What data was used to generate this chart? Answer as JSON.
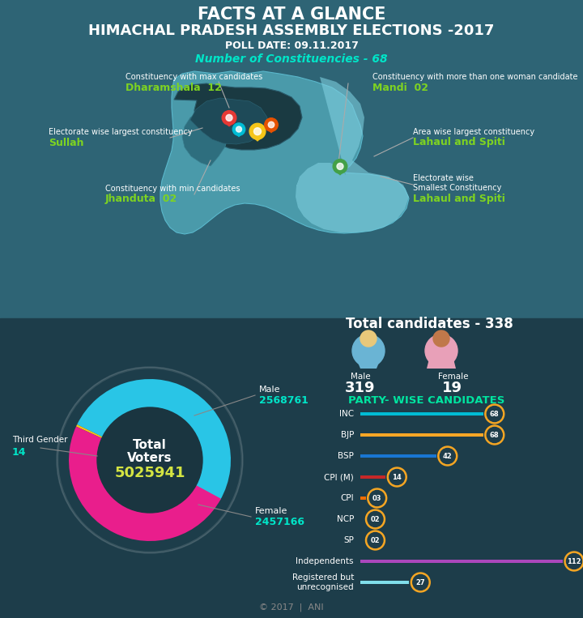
{
  "title_line1": "FACTS AT A GLANCE",
  "title_line2": "HIMACHAL PRADESH ASSEMBLY ELECTIONS -2017",
  "poll_date": "POLL DATE: 09.11.2017",
  "num_constituencies": "Number of Constituencies - 68",
  "total_candidates": "Total candidates - 338",
  "male_candidates": 319,
  "female_candidates": 19,
  "total_voters": "5025941",
  "male_voters": "2568761",
  "female_voters": "2457166",
  "third_gender": "14",
  "bg_top": "#2e6475",
  "bg_bottom": "#1d3d4a",
  "cyan_color": "#00e5c8",
  "green_ann": "#7ed321",
  "yellow_color": "#d4e442",
  "white_color": "#ffffff",
  "parties": [
    "INC",
    "BJP",
    "BSP",
    "CPI (M)",
    "CPI",
    "NCP",
    "SP",
    "Independents",
    "Registered but\nunrecognised"
  ],
  "party_values": [
    68,
    68,
    42,
    14,
    3,
    2,
    2,
    112,
    27
  ],
  "party_colors": [
    "#00bcd4",
    "#ffa726",
    "#1976d2",
    "#c62828",
    "#ef6c00",
    "#ef6c00",
    "#ef6c00",
    "#ab47bc",
    "#80deea"
  ],
  "max_bar_val": 112,
  "circle_bg": "#f5a623",
  "circle_inner": "#1e3d4a",
  "map_teal_light": "#4a9aaa",
  "map_teal_mid": "#2e6e7e",
  "map_dark": "#1a3a42",
  "map_blue_light": "#7ecae0",
  "donut_bg": "#1a3d4d"
}
